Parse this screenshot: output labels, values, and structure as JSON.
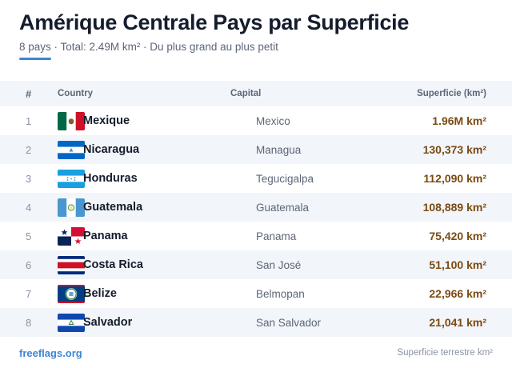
{
  "header": {
    "title": "Amérique Centrale Pays par Superficie",
    "subtitle": "8 pays · Total: 2.49M km² · Du plus grand au plus petit",
    "accent_color": "#3f86d6"
  },
  "table": {
    "columns": [
      "#",
      "Country",
      "Capital",
      "Superficie (km²)"
    ],
    "rows": [
      {
        "rank": "1",
        "flag": "mexico-flag-icon",
        "country": "Mexique",
        "capital": "Mexico",
        "area": "1.96M km²"
      },
      {
        "rank": "2",
        "flag": "nicaragua-flag-icon",
        "country": "Nicaragua",
        "capital": "Managua",
        "area": "130,373 km²"
      },
      {
        "rank": "3",
        "flag": "honduras-flag-icon",
        "country": "Honduras",
        "capital": "Tegucigalpa",
        "area": "112,090 km²"
      },
      {
        "rank": "4",
        "flag": "guatemala-flag-icon",
        "country": "Guatemala",
        "capital": "Guatemala",
        "area": "108,889 km²"
      },
      {
        "rank": "5",
        "flag": "panama-flag-icon",
        "country": "Panama",
        "capital": "Panama",
        "area": "75,420 km²"
      },
      {
        "rank": "6",
        "flag": "costa-rica-flag-icon",
        "country": "Costa Rica",
        "capital": "San José",
        "area": "51,100 km²"
      },
      {
        "rank": "7",
        "flag": "belize-flag-icon",
        "country": "Belize",
        "capital": "Belmopan",
        "area": "22,966 km²"
      },
      {
        "rank": "8",
        "flag": "el-salvador-flag-icon",
        "country": "Salvador",
        "capital": "San Salvador",
        "area": "21,041 km²"
      }
    ]
  },
  "footer": {
    "source": "freeflags.org",
    "note": "Superficie terrestre km²"
  },
  "colors": {
    "row_alt": "#f2f5f9",
    "area_text": "#7a4a12",
    "link": "#3f86d6"
  }
}
